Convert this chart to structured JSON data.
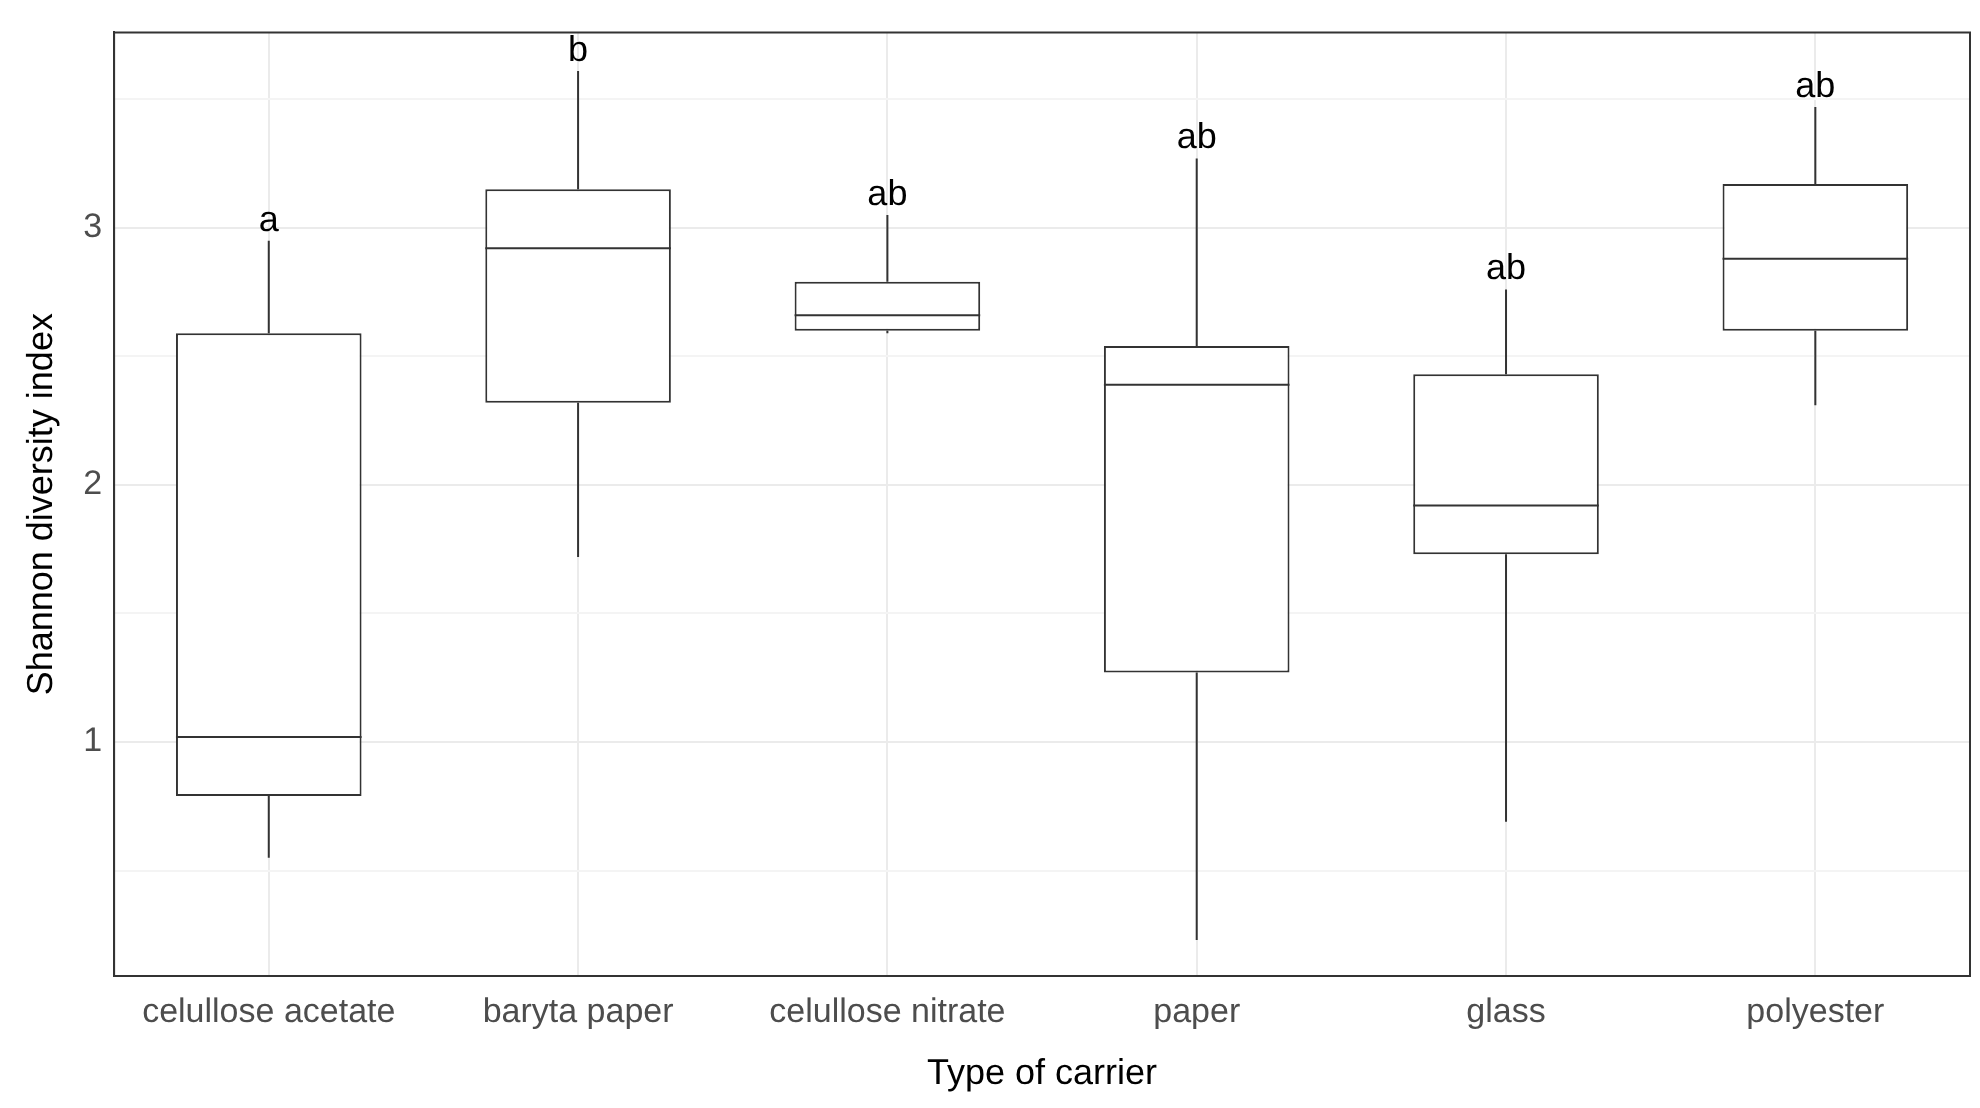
{
  "chart_data": {
    "type": "box",
    "xlabel": "Type of carrier",
    "ylabel": "Shannon diversity index",
    "categories": [
      "celullose acetate",
      "baryta paper",
      "celullose nitrate",
      "paper",
      "glass",
      "polyester"
    ],
    "boxes": [
      {
        "low": 0.55,
        "q1": 0.79,
        "median": 1.02,
        "q3": 2.59,
        "high": 2.95
      },
      {
        "low": 1.72,
        "q1": 2.32,
        "median": 2.92,
        "q3": 3.15,
        "high": 3.61
      },
      {
        "low": 2.59,
        "q1": 2.6,
        "median": 2.66,
        "q3": 2.79,
        "high": 3.05
      },
      {
        "low": 0.23,
        "q1": 1.27,
        "median": 2.39,
        "q3": 2.54,
        "high": 3.27
      },
      {
        "low": 0.69,
        "q1": 1.73,
        "median": 1.92,
        "q3": 2.43,
        "high": 2.76
      },
      {
        "low": 2.31,
        "q1": 2.6,
        "median": 2.88,
        "q3": 3.17,
        "high": 3.47
      }
    ],
    "color": "#333333",
    "ylim": [
      0.09,
      3.76
    ],
    "yticks": [
      {
        "value": 0.5,
        "label": null
      },
      1,
      {
        "value": 1.5,
        "label": null
      },
      2,
      {
        "value": 2.5,
        "label": null
      },
      3,
      {
        "value": 3.5,
        "label": null
      }
    ],
    "grid": true,
    "legend": false,
    "annotations": [
      {
        "text": "a",
        "x": "celullose acetate",
        "y": 2.95
      },
      {
        "text": "b",
        "x": "baryta paper",
        "y": 3.61
      },
      {
        "text": "ab",
        "x": "celullose nitrate",
        "y": 3.05
      },
      {
        "text": "ab",
        "x": "paper",
        "y": 3.27
      },
      {
        "text": "ab",
        "x": "glass",
        "y": 2.76
      },
      {
        "text": "ab",
        "x": "polyester",
        "y": 3.47
      }
    ]
  }
}
